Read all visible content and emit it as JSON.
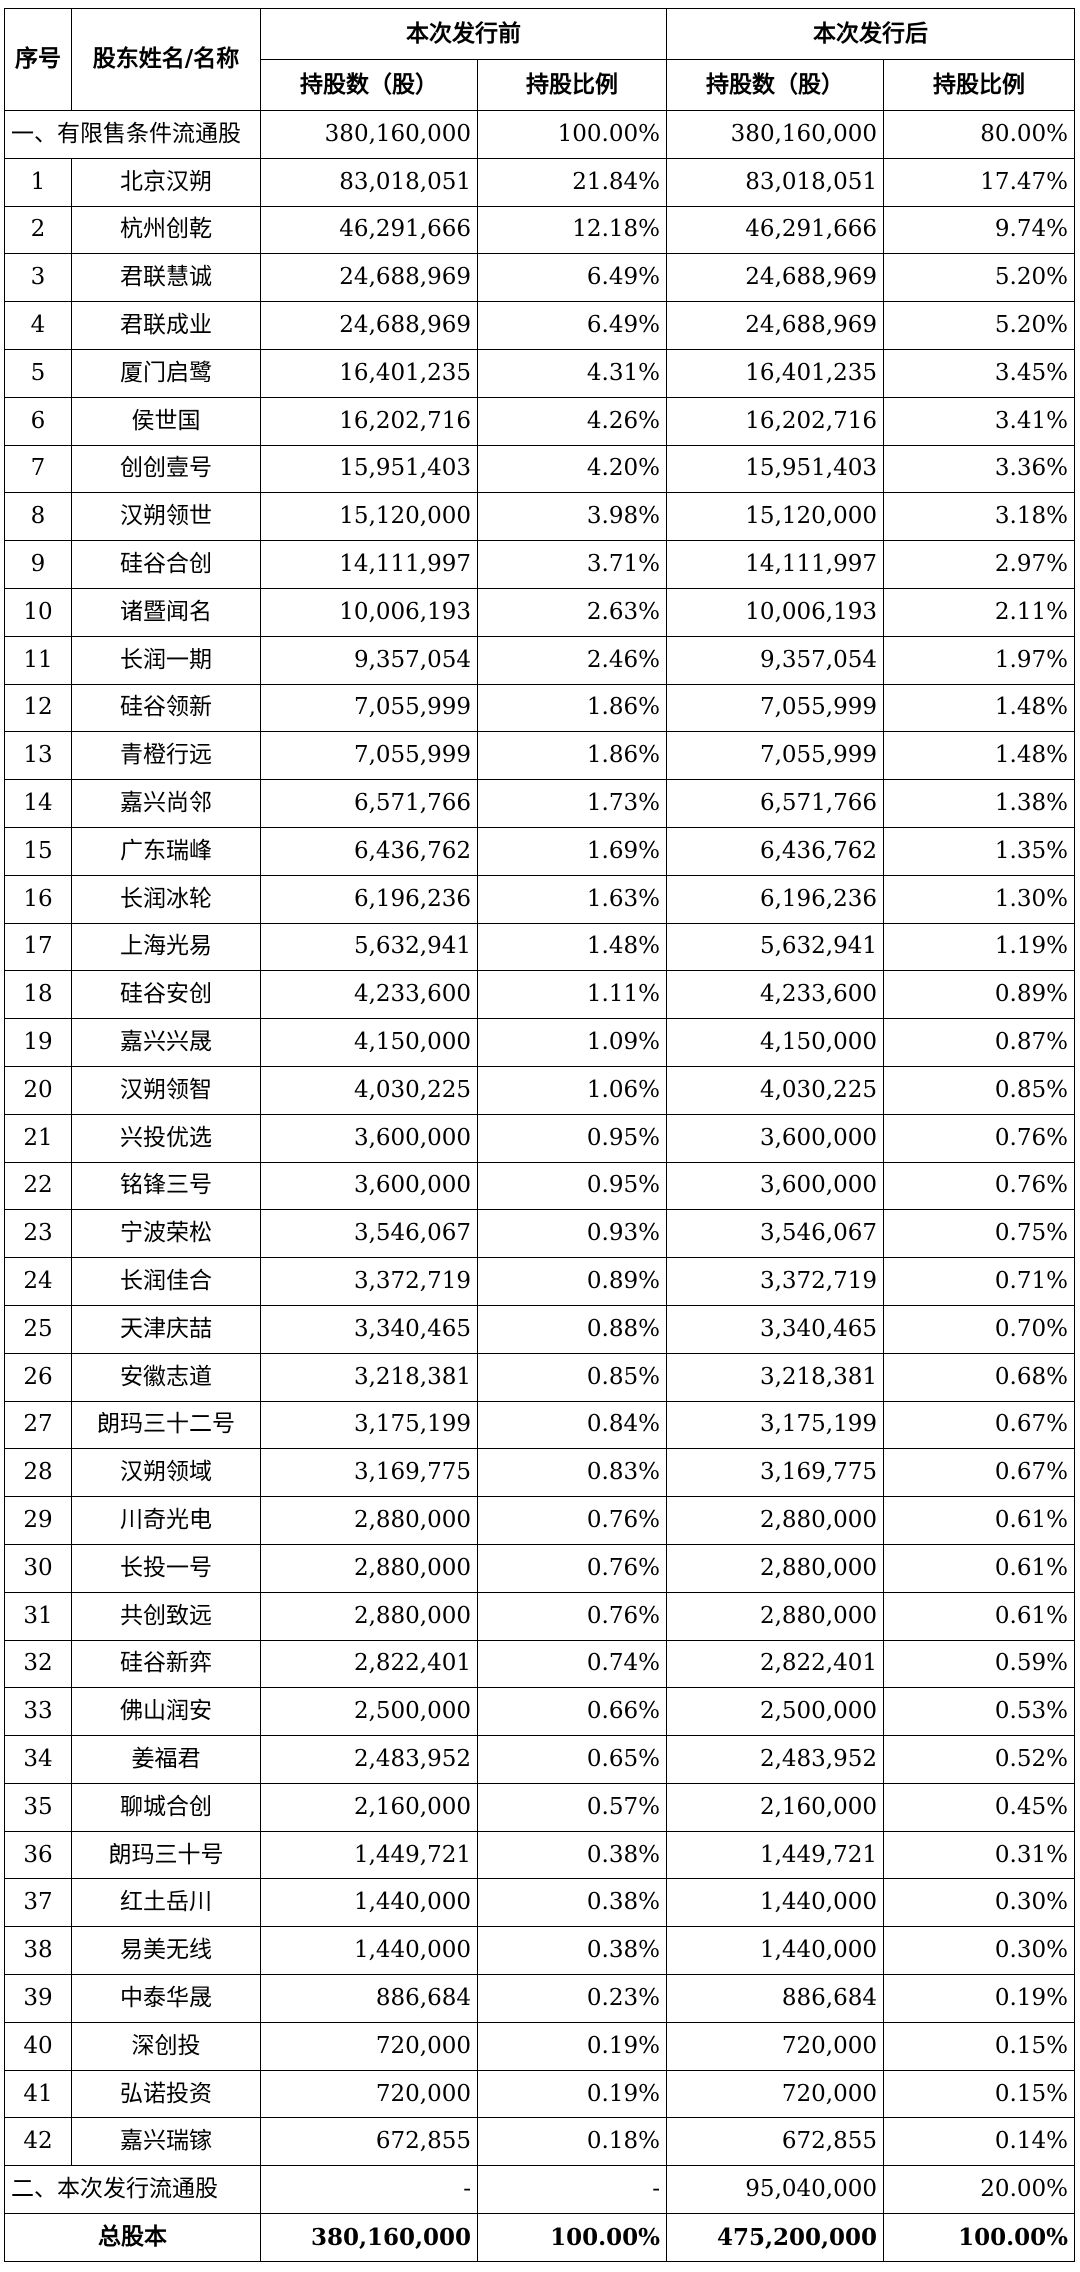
{
  "header": {
    "seq": "序号",
    "name": "股东姓名/名称",
    "before": "本次发行前",
    "after": "本次发行后",
    "shares_label": "持股数（股）",
    "ratio_label": "持股比例"
  },
  "restricted": {
    "label": "一、有限售条件流通股",
    "before_shares": "380,160,000",
    "before_ratio": "100.00%",
    "after_shares": "380,160,000",
    "after_ratio": "80.00%"
  },
  "rows": [
    {
      "no": "1",
      "name": "北京汉朔",
      "bs": "83,018,051",
      "br": "21.84%",
      "as": "83,018,051",
      "ar": "17.47%"
    },
    {
      "no": "2",
      "name": "杭州创乾",
      "bs": "46,291,666",
      "br": "12.18%",
      "as": "46,291,666",
      "ar": "9.74%"
    },
    {
      "no": "3",
      "name": "君联慧诚",
      "bs": "24,688,969",
      "br": "6.49%",
      "as": "24,688,969",
      "ar": "5.20%"
    },
    {
      "no": "4",
      "name": "君联成业",
      "bs": "24,688,969",
      "br": "6.49%",
      "as": "24,688,969",
      "ar": "5.20%"
    },
    {
      "no": "5",
      "name": "厦门启鹭",
      "bs": "16,401,235",
      "br": "4.31%",
      "as": "16,401,235",
      "ar": "3.45%"
    },
    {
      "no": "6",
      "name": "侯世国",
      "bs": "16,202,716",
      "br": "4.26%",
      "as": "16,202,716",
      "ar": "3.41%"
    },
    {
      "no": "7",
      "name": "创创壹号",
      "bs": "15,951,403",
      "br": "4.20%",
      "as": "15,951,403",
      "ar": "3.36%"
    },
    {
      "no": "8",
      "name": "汉朔领世",
      "bs": "15,120,000",
      "br": "3.98%",
      "as": "15,120,000",
      "ar": "3.18%"
    },
    {
      "no": "9",
      "name": "硅谷合创",
      "bs": "14,111,997",
      "br": "3.71%",
      "as": "14,111,997",
      "ar": "2.97%"
    },
    {
      "no": "10",
      "name": "诸暨闻名",
      "bs": "10,006,193",
      "br": "2.63%",
      "as": "10,006,193",
      "ar": "2.11%"
    },
    {
      "no": "11",
      "name": "长润一期",
      "bs": "9,357,054",
      "br": "2.46%",
      "as": "9,357,054",
      "ar": "1.97%"
    },
    {
      "no": "12",
      "name": "硅谷领新",
      "bs": "7,055,999",
      "br": "1.86%",
      "as": "7,055,999",
      "ar": "1.48%"
    },
    {
      "no": "13",
      "name": "青橙行远",
      "bs": "7,055,999",
      "br": "1.86%",
      "as": "7,055,999",
      "ar": "1.48%"
    },
    {
      "no": "14",
      "name": "嘉兴尚邻",
      "bs": "6,571,766",
      "br": "1.73%",
      "as": "6,571,766",
      "ar": "1.38%"
    },
    {
      "no": "15",
      "name": "广东瑞峰",
      "bs": "6,436,762",
      "br": "1.69%",
      "as": "6,436,762",
      "ar": "1.35%"
    },
    {
      "no": "16",
      "name": "长润冰轮",
      "bs": "6,196,236",
      "br": "1.63%",
      "as": "6,196,236",
      "ar": "1.30%"
    },
    {
      "no": "17",
      "name": "上海光易",
      "bs": "5,632,941",
      "br": "1.48%",
      "as": "5,632,941",
      "ar": "1.19%"
    },
    {
      "no": "18",
      "name": "硅谷安创",
      "bs": "4,233,600",
      "br": "1.11%",
      "as": "4,233,600",
      "ar": "0.89%"
    },
    {
      "no": "19",
      "name": "嘉兴兴晟",
      "bs": "4,150,000",
      "br": "1.09%",
      "as": "4,150,000",
      "ar": "0.87%"
    },
    {
      "no": "20",
      "name": "汉朔领智",
      "bs": "4,030,225",
      "br": "1.06%",
      "as": "4,030,225",
      "ar": "0.85%"
    },
    {
      "no": "21",
      "name": "兴投优选",
      "bs": "3,600,000",
      "br": "0.95%",
      "as": "3,600,000",
      "ar": "0.76%"
    },
    {
      "no": "22",
      "name": "铭锋三号",
      "bs": "3,600,000",
      "br": "0.95%",
      "as": "3,600,000",
      "ar": "0.76%"
    },
    {
      "no": "23",
      "name": "宁波荣松",
      "bs": "3,546,067",
      "br": "0.93%",
      "as": "3,546,067",
      "ar": "0.75%"
    },
    {
      "no": "24",
      "name": "长润佳合",
      "bs": "3,372,719",
      "br": "0.89%",
      "as": "3,372,719",
      "ar": "0.71%"
    },
    {
      "no": "25",
      "name": "天津庆喆",
      "bs": "3,340,465",
      "br": "0.88%",
      "as": "3,340,465",
      "ar": "0.70%"
    },
    {
      "no": "26",
      "name": "安徽志道",
      "bs": "3,218,381",
      "br": "0.85%",
      "as": "3,218,381",
      "ar": "0.68%"
    },
    {
      "no": "27",
      "name": "朗玛三十二号",
      "bs": "3,175,199",
      "br": "0.84%",
      "as": "3,175,199",
      "ar": "0.67%"
    },
    {
      "no": "28",
      "name": "汉朔领域",
      "bs": "3,169,775",
      "br": "0.83%",
      "as": "3,169,775",
      "ar": "0.67%"
    },
    {
      "no": "29",
      "name": "川奇光电",
      "bs": "2,880,000",
      "br": "0.76%",
      "as": "2,880,000",
      "ar": "0.61%"
    },
    {
      "no": "30",
      "name": "长投一号",
      "bs": "2,880,000",
      "br": "0.76%",
      "as": "2,880,000",
      "ar": "0.61%"
    },
    {
      "no": "31",
      "name": "共创致远",
      "bs": "2,880,000",
      "br": "0.76%",
      "as": "2,880,000",
      "ar": "0.61%"
    },
    {
      "no": "32",
      "name": "硅谷新弈",
      "bs": "2,822,401",
      "br": "0.74%",
      "as": "2,822,401",
      "ar": "0.59%"
    },
    {
      "no": "33",
      "name": "佛山润安",
      "bs": "2,500,000",
      "br": "0.66%",
      "as": "2,500,000",
      "ar": "0.53%"
    },
    {
      "no": "34",
      "name": "姜福君",
      "bs": "2,483,952",
      "br": "0.65%",
      "as": "2,483,952",
      "ar": "0.52%"
    },
    {
      "no": "35",
      "name": "聊城合创",
      "bs": "2,160,000",
      "br": "0.57%",
      "as": "2,160,000",
      "ar": "0.45%"
    },
    {
      "no": "36",
      "name": "朗玛三十号",
      "bs": "1,449,721",
      "br": "0.38%",
      "as": "1,449,721",
      "ar": "0.31%"
    },
    {
      "no": "37",
      "name": "红土岳川",
      "bs": "1,440,000",
      "br": "0.38%",
      "as": "1,440,000",
      "ar": "0.30%"
    },
    {
      "no": "38",
      "name": "易美无线",
      "bs": "1,440,000",
      "br": "0.38%",
      "as": "1,440,000",
      "ar": "0.30%"
    },
    {
      "no": "39",
      "name": "中泰华晟",
      "bs": "886,684",
      "br": "0.23%",
      "as": "886,684",
      "ar": "0.19%"
    },
    {
      "no": "40",
      "name": "深创投",
      "bs": "720,000",
      "br": "0.19%",
      "as": "720,000",
      "ar": "0.15%"
    },
    {
      "no": "41",
      "name": "弘诺投资",
      "bs": "720,000",
      "br": "0.19%",
      "as": "720,000",
      "ar": "0.15%"
    },
    {
      "no": "42",
      "name": "嘉兴瑞镓",
      "bs": "672,855",
      "br": "0.18%",
      "as": "672,855",
      "ar": "0.14%"
    }
  ],
  "issued": {
    "label": "二、本次发行流通股",
    "before_shares": "-",
    "before_ratio": "-",
    "after_shares": "95,040,000",
    "after_ratio": "20.00%"
  },
  "total": {
    "label": "总股本",
    "before_shares": "380,160,000",
    "before_ratio": "100.00%",
    "after_shares": "475,200,000",
    "after_ratio": "100.00%"
  }
}
